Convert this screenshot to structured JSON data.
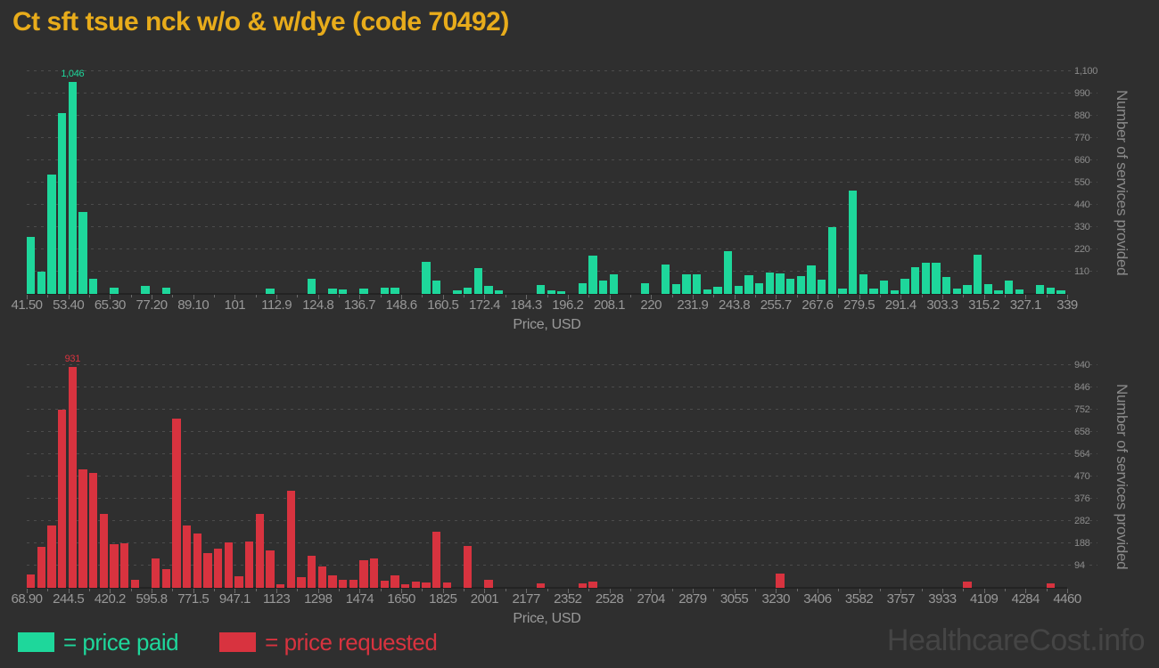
{
  "title": "Ct sft tsue nck w/o & w/dye (code 70492)",
  "watermark": "HealthcareCost.info",
  "legend": {
    "paid_label": "= price paid",
    "requested_label": "= price requested"
  },
  "colors": {
    "background": "#2f2f2f",
    "title": "#e8ac1b",
    "paid": "#1ed79b",
    "requested": "#d8333f",
    "axis_text": "#989898",
    "gridline": "#4c4c4c",
    "watermark": "#454545"
  },
  "chart_data": [
    {
      "type": "bar",
      "name": "price paid histogram",
      "color": "#1ed79b",
      "xlabel": "Price, USD",
      "ylabel": "Number of services provided",
      "grid": true,
      "legend_position": "bottom-left",
      "x_range": [
        41.5,
        339
      ],
      "bin_count": 100,
      "x_tick_labels": [
        "41.50",
        "53.40",
        "65.30",
        "77.20",
        "89.10",
        "101",
        "112.9",
        "124.8",
        "136.7",
        "148.6",
        "160.5",
        "172.4",
        "184.3",
        "196.2",
        "208.1",
        "220",
        "231.9",
        "243.8",
        "255.7",
        "267.6",
        "279.5",
        "291.4",
        "303.3",
        "315.2",
        "327.1",
        "339"
      ],
      "y_tick_values": [
        110,
        220,
        330,
        440,
        550,
        660,
        770,
        880,
        990,
        1100
      ],
      "y_tick_labels": [
        "110",
        "220",
        "330",
        "440",
        "550",
        "660",
        "770",
        "880",
        "990",
        "1,100"
      ],
      "ymax": 1100,
      "peak_annotation": "1,046",
      "values": [
        283,
        112,
        591,
        893,
        1046,
        407,
        76,
        0,
        29,
        0,
        0,
        39,
        0,
        29,
        0,
        0,
        0,
        0,
        0,
        0,
        0,
        0,
        0,
        26,
        0,
        0,
        0,
        73,
        0,
        26,
        22,
        0,
        26,
        0,
        32,
        32,
        0,
        0,
        157,
        64,
        0,
        18,
        32,
        128,
        40,
        18,
        0,
        0,
        0,
        44,
        19,
        13,
        0,
        54,
        188,
        65,
        97,
        0,
        0,
        55,
        0,
        147,
        50,
        95,
        95,
        23,
        35,
        211,
        41,
        92,
        53,
        105,
        101,
        75,
        90,
        142,
        72,
        330,
        28,
        510,
        97,
        27,
        67,
        16,
        73,
        132,
        154,
        152,
        84,
        28,
        45,
        195,
        50,
        18,
        64,
        23,
        0,
        44,
        32,
        18
      ]
    },
    {
      "type": "bar",
      "name": "price requested histogram",
      "color": "#d8333f",
      "xlabel": "Price, USD",
      "ylabel": "Number of services provided",
      "grid": true,
      "legend_position": "bottom-left",
      "x_range": [
        68.9,
        4460
      ],
      "bin_count": 100,
      "x_tick_labels": [
        "68.90",
        "244.5",
        "420.2",
        "595.8",
        "771.5",
        "947.1",
        "1123",
        "1298",
        "1474",
        "1650",
        "1825",
        "2001",
        "2177",
        "2352",
        "2528",
        "2704",
        "2879",
        "3055",
        "3230",
        "3406",
        "3582",
        "3757",
        "3933",
        "4109",
        "4284",
        "4460"
      ],
      "y_tick_values": [
        94,
        188,
        282,
        376,
        470,
        564,
        658,
        752,
        846,
        940
      ],
      "y_tick_labels": [
        "94",
        "188",
        "282",
        "376",
        "470",
        "564",
        "658",
        "752",
        "846",
        "940"
      ],
      "ymax": 940,
      "peak_annotation": "931",
      "values": [
        57,
        172,
        265,
        751,
        931,
        500,
        486,
        314,
        183,
        188,
        34,
        0,
        125,
        78,
        716,
        262,
        229,
        145,
        164,
        191,
        48,
        194,
        313,
        157,
        15,
        411,
        45,
        135,
        90,
        53,
        35,
        35,
        116,
        123,
        30,
        52,
        15,
        26,
        22,
        238,
        22,
        0,
        175,
        0,
        35,
        0,
        0,
        0,
        0,
        20,
        0,
        0,
        0,
        17,
        26,
        0,
        0,
        0,
        0,
        0,
        0,
        0,
        0,
        0,
        0,
        0,
        0,
        0,
        0,
        0,
        0,
        0,
        60,
        0,
        0,
        0,
        0,
        0,
        0,
        0,
        0,
        0,
        0,
        0,
        0,
        0,
        0,
        0,
        0,
        0,
        28,
        0,
        0,
        0,
        0,
        0,
        0,
        0,
        20,
        0
      ]
    }
  ]
}
